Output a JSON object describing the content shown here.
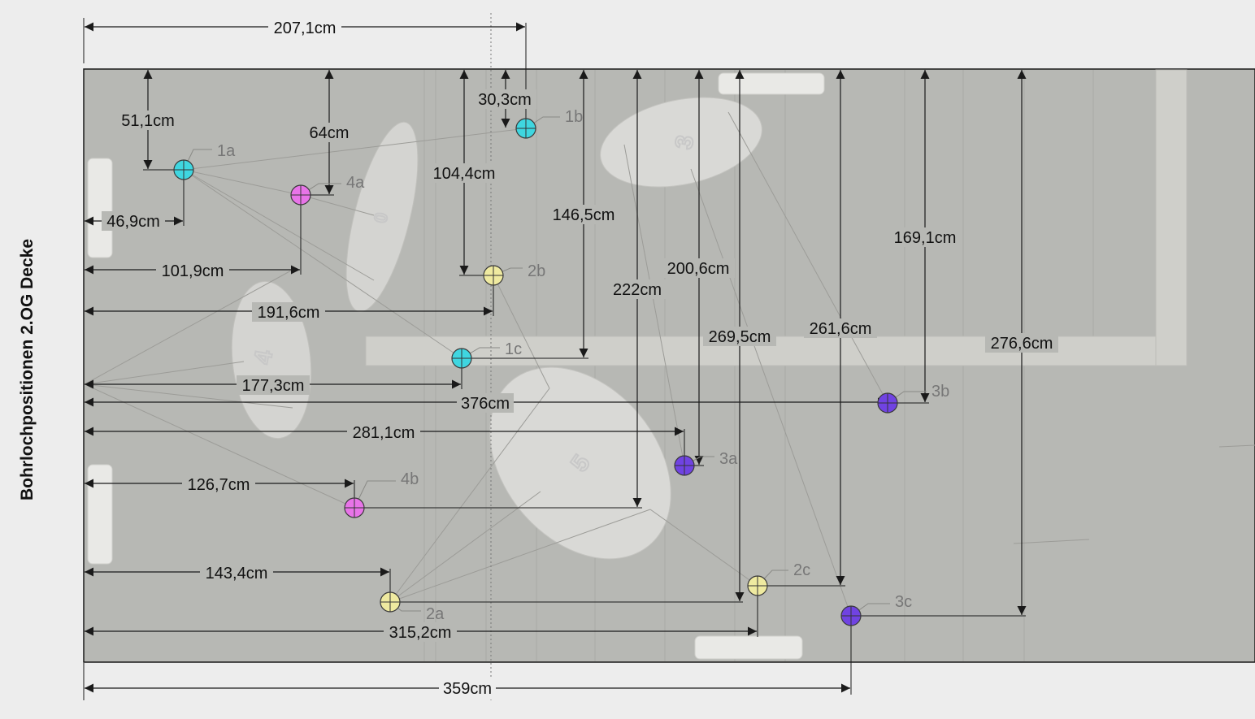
{
  "title": "Bohrlochpositionen 2.OG Decke",
  "colors": {
    "background": "#ededed",
    "ceiling": "#b7b8b4",
    "dimension_line": "#1a1a1a",
    "hole_1": "#3fd6e0",
    "hole_2": "#efeaa0",
    "hole_3": "#7043e2",
    "hole_4": "#e874e8"
  },
  "holes": [
    {
      "id": "1a",
      "label": "1a",
      "group": "1"
    },
    {
      "id": "1b",
      "label": "1b",
      "group": "1"
    },
    {
      "id": "1c",
      "label": "1c",
      "group": "1"
    },
    {
      "id": "2a",
      "label": "2a",
      "group": "2"
    },
    {
      "id": "2b",
      "label": "2b",
      "group": "2"
    },
    {
      "id": "2c",
      "label": "2c",
      "group": "2"
    },
    {
      "id": "3a",
      "label": "3a",
      "group": "3"
    },
    {
      "id": "3b",
      "label": "3b",
      "group": "3"
    },
    {
      "id": "3c",
      "label": "3c",
      "group": "3"
    },
    {
      "id": "4a",
      "label": "4a",
      "group": "4"
    },
    {
      "id": "4b",
      "label": "4b",
      "group": "4"
    }
  ],
  "fixture_numbers": [
    "3",
    "5",
    "4",
    "0"
  ],
  "dimensions": {
    "d_207_1": "207,1cm",
    "d_51_1": "51,1cm",
    "d_64": "64cm",
    "d_30_3": "30,3cm",
    "d_104_4": "104,4cm",
    "d_146_5": "146,5cm",
    "d_46_9": "46,9cm",
    "d_101_9": "101,9cm",
    "d_191_6": "191,6cm",
    "d_200_6": "200,6cm",
    "d_222": "222cm",
    "d_169_1": "169,1cm",
    "d_269_5": "269,5cm",
    "d_261_6": "261,6cm",
    "d_276_6": "276,6cm",
    "d_177_3": "177,3cm",
    "d_376": "376cm",
    "d_281_1": "281,1cm",
    "d_126_7": "126,7cm",
    "d_143_4": "143,4cm",
    "d_315_2": "315,2cm",
    "d_359": "359cm"
  }
}
